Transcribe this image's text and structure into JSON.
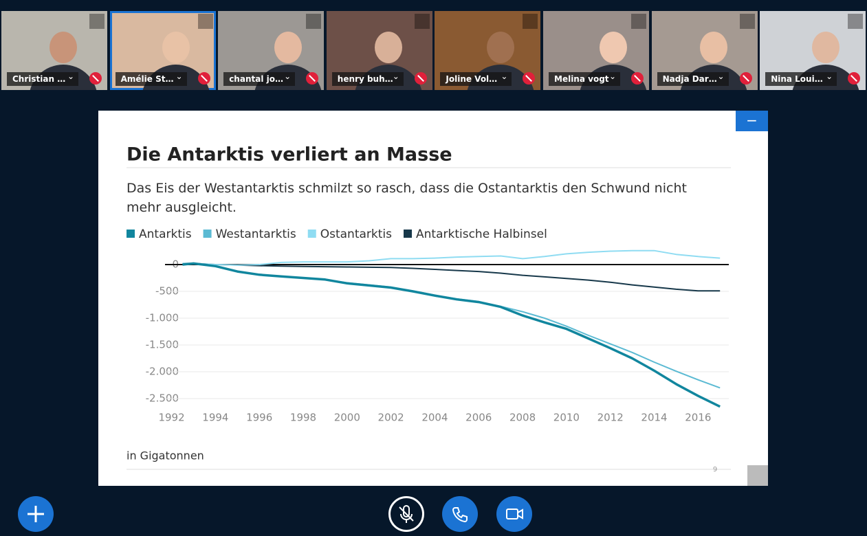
{
  "participants": [
    {
      "name": "Christian …"
    },
    {
      "name": "Amélie St…"
    },
    {
      "name": "chantal jo…"
    },
    {
      "name": "henry buh…"
    },
    {
      "name": "Joline Vol…"
    },
    {
      "name": "Melina vogt"
    },
    {
      "name": "Nadja Dar…"
    },
    {
      "name": "Nina Loui…"
    }
  ],
  "slide": {
    "page_number": "9"
  },
  "chart_data": {
    "type": "line",
    "title": "Die Antarktis verliert an Masse",
    "subtitle": "Das Eis der Westantarktis schmilzt so rasch, dass die Ostantarktis den Schwund nicht mehr ausgleicht.",
    "ylabel": "in Gigatonnen",
    "x": [
      1992.5,
      1993,
      1994,
      1995,
      1996,
      1997,
      1998,
      1999,
      2000,
      2001,
      2002,
      2003,
      2004,
      2005,
      2006,
      2007,
      2008,
      2009,
      2010,
      2011,
      2012,
      2013,
      2014,
      2015,
      2016,
      2017
    ],
    "series": [
      {
        "name": "Antarktis",
        "color": "#11869e",
        "values": [
          0,
          20,
          -30,
          -130,
          -190,
          -220,
          -250,
          -280,
          -350,
          -390,
          -430,
          -500,
          -580,
          -650,
          -700,
          -790,
          -950,
          -1080,
          -1200,
          -1380,
          -1560,
          -1750,
          -1980,
          -2230,
          -2450,
          -2650
        ]
      },
      {
        "name": "Westantarktis",
        "color": "#5bbad3",
        "values": [
          0,
          20,
          -30,
          -130,
          -190,
          -220,
          -250,
          -280,
          -340,
          -380,
          -420,
          -490,
          -570,
          -640,
          -690,
          -780,
          -880,
          -1000,
          -1150,
          -1320,
          -1480,
          -1640,
          -1820,
          -1990,
          -2150,
          -2300
        ]
      },
      {
        "name": "Ostantarktis",
        "color": "#8fdcf2",
        "values": [
          20,
          20,
          0,
          -10,
          0,
          40,
          50,
          50,
          50,
          70,
          110,
          110,
          120,
          140,
          150,
          160,
          110,
          150,
          200,
          230,
          250,
          260,
          260,
          190,
          150,
          120
        ]
      },
      {
        "name": "Antarktische Halbinsel",
        "color": "#17384a",
        "values": [
          20,
          20,
          0,
          -10,
          -20,
          -30,
          -35,
          -40,
          -45,
          -50,
          -55,
          -70,
          -90,
          -110,
          -130,
          -160,
          -200,
          -230,
          -260,
          -290,
          -330,
          -380,
          -420,
          -460,
          -490,
          -490
        ]
      }
    ],
    "xlim": [
      1991.7,
      2017.4
    ],
    "xticks": [
      1992,
      1994,
      1996,
      1998,
      2000,
      2002,
      2004,
      2006,
      2008,
      2010,
      2012,
      2014,
      2016
    ],
    "ylim": [
      -2700,
      300
    ],
    "yticks": [
      0,
      -500,
      {
        "value": -1000,
        "label": "-1.000"
      },
      {
        "value": -1500,
        "label": "-1.500"
      },
      {
        "value": -2000,
        "label": "-2.000"
      },
      {
        "value": -2500,
        "label": "-2.500"
      }
    ],
    "grid": true
  }
}
